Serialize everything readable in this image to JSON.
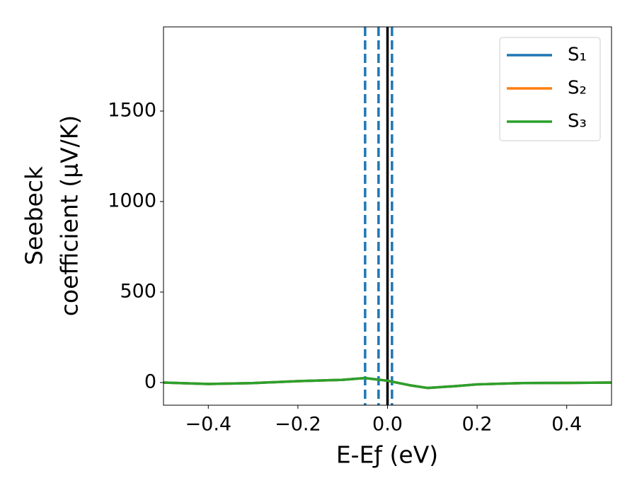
{
  "chart_data": {
    "type": "line",
    "xlabel": "E-Eƒ (eV)",
    "ylabel": [
      "Seebeck",
      "coefficient  (μV/K)"
    ],
    "x": [
      -0.5,
      -0.4,
      -0.3,
      -0.2,
      -0.1,
      -0.05,
      0,
      0.05,
      0.09,
      0.15,
      0.2,
      0.3,
      0.4,
      0.5
    ],
    "series": [
      {
        "name": "S₁",
        "color": "#1f77b4",
        "values": [
          0,
          -8,
          -3,
          8,
          15,
          25,
          10,
          -15,
          -30,
          -20,
          -10,
          -3,
          -2,
          0
        ]
      },
      {
        "name": "S₂",
        "color": "#ff7f0e",
        "values": [
          0,
          -8,
          -3,
          8,
          15,
          25,
          10,
          -15,
          -30,
          -20,
          -10,
          -3,
          -2,
          0
        ]
      },
      {
        "name": "S₃",
        "color": "#2ca02c",
        "values": [
          0,
          -8,
          -3,
          8,
          15,
          25,
          10,
          -15,
          -30,
          -20,
          -10,
          -3,
          -2,
          0
        ]
      }
    ],
    "vlines": [
      {
        "x": -0.05,
        "color": "#1f77b4",
        "style": "dashed"
      },
      {
        "x": -0.02,
        "color": "#1f77b4",
        "style": "dashed"
      },
      {
        "x": 0.01,
        "color": "#1f77b4",
        "style": "dashed"
      },
      {
        "x": 0,
        "color": "#000000",
        "style": "solid"
      }
    ],
    "xlim": [
      -0.5,
      0.5
    ],
    "xticks": [
      {
        "value": -0.4,
        "label": "−0.4"
      },
      {
        "value": -0.2,
        "label": "−0.2"
      },
      {
        "value": 0,
        "label": "0.0"
      },
      0.2,
      0.4
    ],
    "ylim": [
      -125,
      1965
    ],
    "yticks": [
      0,
      500,
      1000,
      1500
    ],
    "legend": "upper right",
    "grid": false
  }
}
